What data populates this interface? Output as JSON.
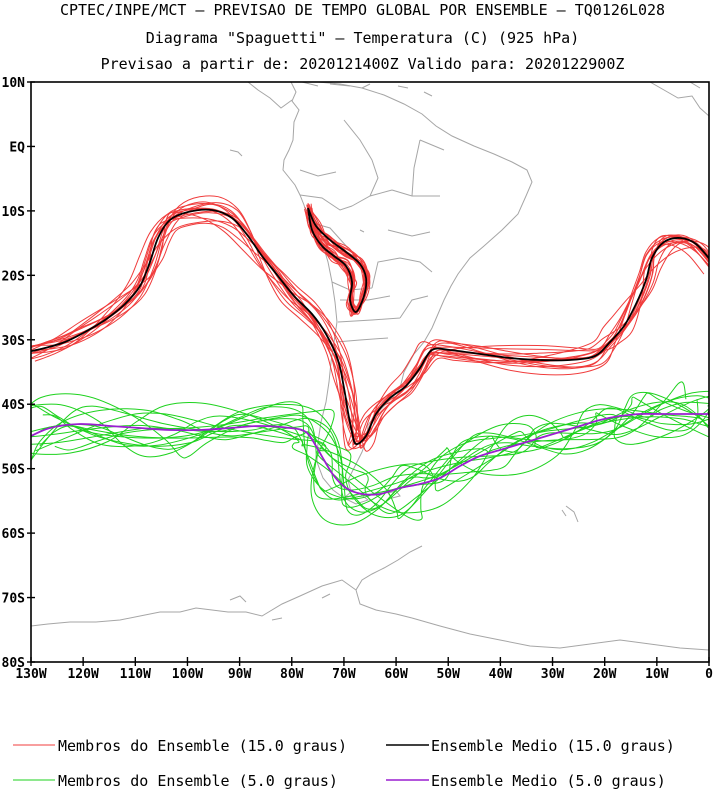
{
  "header": {
    "line1": "CPTEC/INPE/MCT – PREVISAO DE TEMPO GLOBAL POR ENSEMBLE – TQ0126L028",
    "line2": "Diagrama \"Spaguetti\" – Temperatura (C) (925 hPa)",
    "line3": "Previsao a partir de: 2020121400Z  Valido para: 2020122900Z"
  },
  "map": {
    "lat_ticks": [
      {
        "lat": 10,
        "label": "10N"
      },
      {
        "lat": 0,
        "label": "EQ"
      },
      {
        "lat": -10,
        "label": "10S"
      },
      {
        "lat": -20,
        "label": "20S"
      },
      {
        "lat": -30,
        "label": "30S"
      },
      {
        "lat": -40,
        "label": "40S"
      },
      {
        "lat": -50,
        "label": "50S"
      },
      {
        "lat": -60,
        "label": "60S"
      },
      {
        "lat": -70,
        "label": "70S"
      },
      {
        "lat": -80,
        "label": "80S"
      }
    ],
    "lon_ticks": [
      {
        "lon": -130,
        "label": "130W"
      },
      {
        "lon": -120,
        "label": "120W"
      },
      {
        "lon": -110,
        "label": "110W"
      },
      {
        "lon": -100,
        "label": "100W"
      },
      {
        "lon": -90,
        "label": "90W"
      },
      {
        "lon": -80,
        "label": "80W"
      },
      {
        "lon": -70,
        "label": "70W"
      },
      {
        "lon": -60,
        "label": "60W"
      },
      {
        "lon": -50,
        "label": "50W"
      },
      {
        "lon": -40,
        "label": "40W"
      },
      {
        "lon": -30,
        "label": "30W"
      },
      {
        "lon": -20,
        "label": "20W"
      },
      {
        "lon": -10,
        "label": "10W"
      },
      {
        "lon": 0,
        "label": "0"
      }
    ],
    "lat_range": [
      -80,
      10
    ],
    "lon_range": [
      -130,
      0
    ],
    "colors": {
      "members_15": "#f03c3c",
      "mean_15": "#000000",
      "members_5": "#1ed21e",
      "mean_5": "#9a1fd0",
      "coast": "#a6a6a6"
    }
  },
  "legend": {
    "members_15": "Membros do Ensemble (15.0 graus)",
    "mean_15": "Ensemble Medio (15.0 graus)",
    "members_5": "Membros do Ensemble (5.0 graus)",
    "mean_5": "Ensemble Medio (5.0 graus)"
  }
}
